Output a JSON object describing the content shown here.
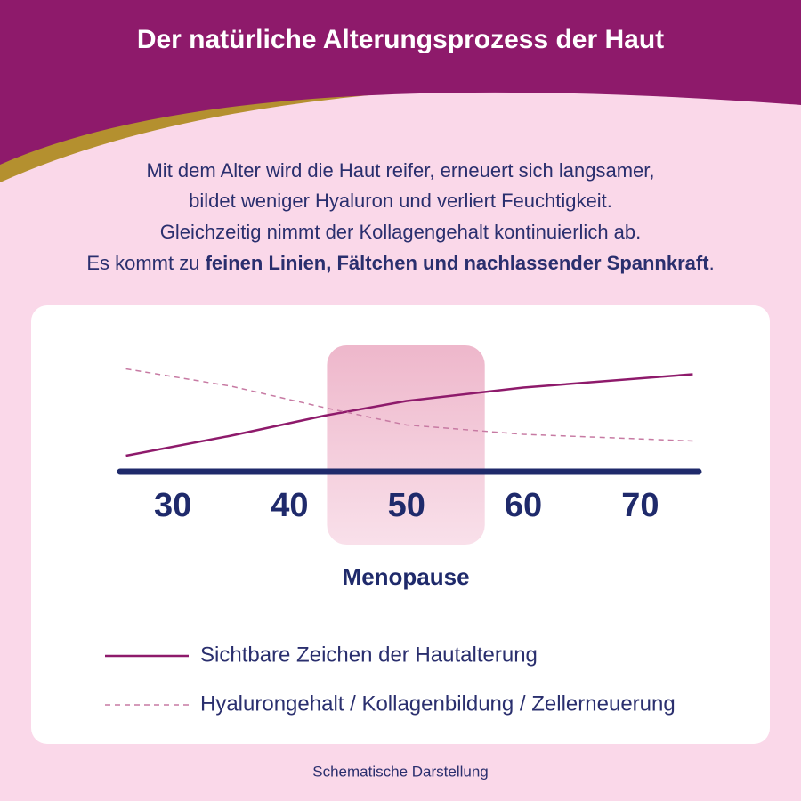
{
  "header": {
    "title": "Der natürliche Alterungsprozess der Haut"
  },
  "intro": [
    "Mit dem Alter wird die Haut reifer, erneuert sich langsamer,",
    "bildet weniger Hyaluron und verliert Feuchtigkeit.",
    "Gleichzeitig nimmt der Kollagengehalt kontinuierlich ab."
  ],
  "intro_last": {
    "prefix": "Es kommt zu ",
    "bold": "feinen Linien, Fältchen und nachlassender Spannkraft",
    "suffix": "."
  },
  "footer": "Schematische Darstellung",
  "chart_data": {
    "type": "line",
    "xlim": [
      25.5,
      75
    ],
    "xticks": [
      30,
      40,
      50,
      60,
      70
    ],
    "ylim": [
      0,
      100
    ],
    "highlight": {
      "label": "Menopause",
      "range": [
        43.2,
        56.7
      ],
      "color": "#f2c3d6"
    },
    "axis_color": "#1f2a6b",
    "series": [
      {
        "name": "Sichtbare Zeichen der Hautalterung",
        "color": "#8e1a6b",
        "dashed": false,
        "x": [
          26,
          35,
          43,
          50,
          60,
          74.5
        ],
        "values": [
          12,
          27,
          42,
          53,
          63,
          73
        ]
      },
      {
        "name": "Hyalurongehalt / Kollagenbildung / Zellerneuerung",
        "color": "#c77aa3",
        "dashed": true,
        "x": [
          26,
          35,
          43,
          50,
          60,
          74.5
        ],
        "values": [
          77,
          64,
          48,
          35,
          28,
          23
        ]
      }
    ]
  }
}
